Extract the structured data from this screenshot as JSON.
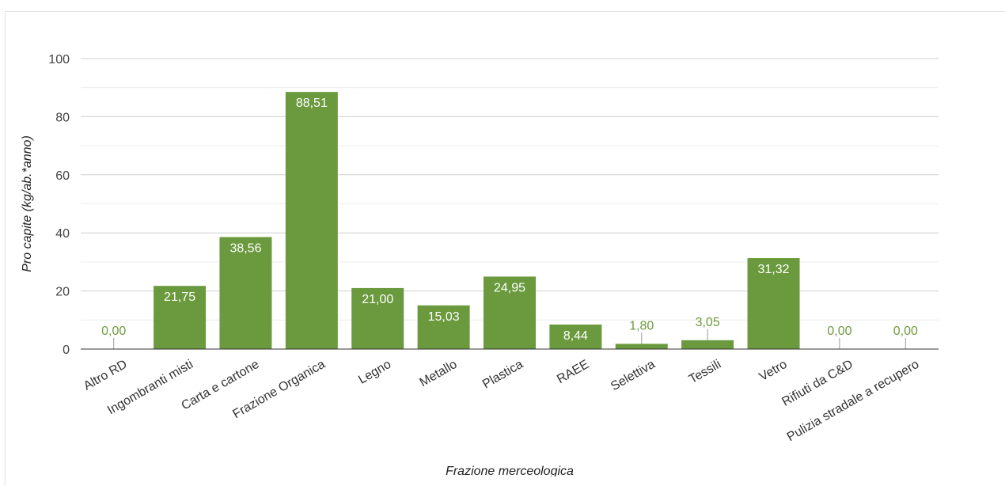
{
  "chart_data": {
    "type": "bar",
    "title": "",
    "xlabel": "Frazione merceologica",
    "ylabel": "Pro capite (kg/ab.*anno)",
    "ylim": [
      0,
      100
    ],
    "yticks": [
      0,
      20,
      40,
      60,
      80,
      100
    ],
    "grid": true,
    "legend": "none",
    "bar_color": "#6a9a3d",
    "categories": [
      "Altro RD",
      "Ingombranti misti",
      "Carta e cartone",
      "Frazione Organica",
      "Legno",
      "Metallo",
      "Plastica",
      "RAEE",
      "Selettiva",
      "Tessili",
      "Vetro",
      "Rifiuti da C&D",
      "Pulizia stradale a recupero"
    ],
    "values": [
      0.0,
      21.75,
      38.56,
      88.51,
      21.0,
      15.03,
      24.95,
      8.44,
      1.8,
      3.05,
      31.32,
      0.0,
      0.0
    ],
    "value_labels": [
      "0,00",
      "21,75",
      "38,56",
      "88,51",
      "21,00",
      "15,03",
      "24,95",
      "8,44",
      "1,80",
      "3,05",
      "31,32",
      "0,00",
      "0,00"
    ]
  }
}
